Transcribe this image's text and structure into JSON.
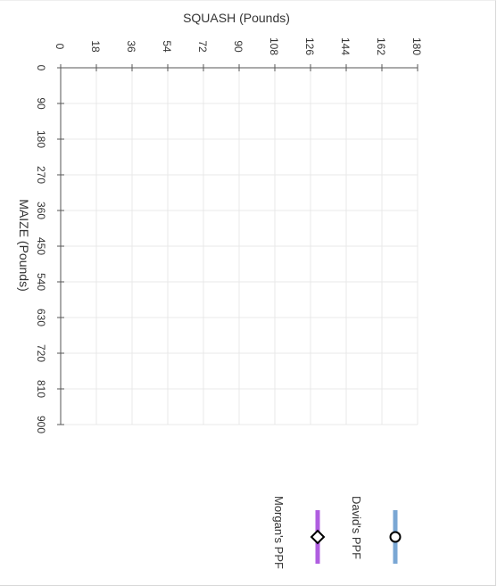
{
  "chart_data": {
    "type": "line",
    "y_axis": {
      "label": "SQUASH (Pounds)",
      "ticks": [
        0,
        18,
        36,
        54,
        72,
        90,
        108,
        126,
        144,
        162,
        180
      ],
      "range": [
        0,
        180
      ]
    },
    "x_axis": {
      "label": "MAIZE (Pounds)",
      "ticks": [
        0,
        90,
        180,
        270,
        360,
        450,
        540,
        630,
        720,
        810,
        900
      ],
      "range": [
        0,
        900
      ]
    },
    "grid": true,
    "rotated": "90deg",
    "legend_position": "bottom-right",
    "series": [
      {
        "name": "David's PPF",
        "color": "#7aa7d4",
        "marker": "circle",
        "points": []
      },
      {
        "name": "Morgan's PPF",
        "color": "#b05ee0",
        "marker": "diamond",
        "points": []
      }
    ]
  }
}
